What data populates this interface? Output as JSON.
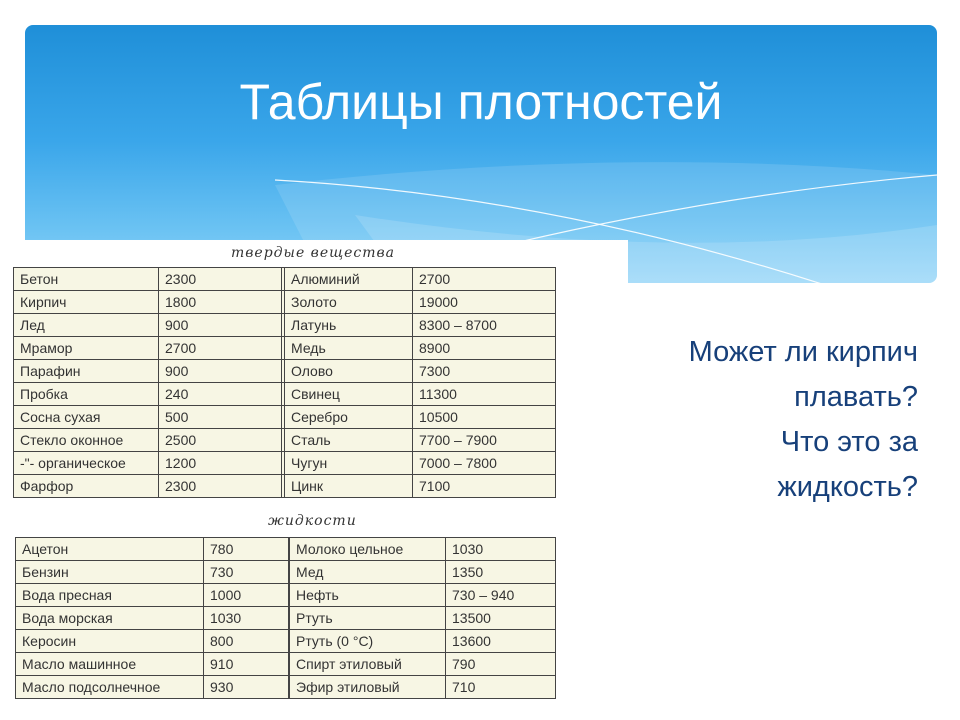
{
  "slide": {
    "title": "Таблицы плотностей",
    "question_lines": [
      "Может ли кирпич",
      "плавать?",
      "Что это за",
      "жидкость?"
    ],
    "colors": {
      "banner": "#3aa6ea",
      "question_text": "#17407a",
      "table_bg": "#f7f6e4"
    }
  },
  "solids": {
    "caption": "твердые вещества",
    "rows": [
      [
        "Бетон",
        "2300",
        "Алюминий",
        "2700"
      ],
      [
        "Кирпич",
        "1800",
        "Золото",
        "19000"
      ],
      [
        "Лед",
        "900",
        "Латунь",
        "8300 – 8700"
      ],
      [
        "Мрамор",
        "2700",
        "Медь",
        "8900"
      ],
      [
        "Парафин",
        "900",
        "Олово",
        "7300"
      ],
      [
        "Пробка",
        "240",
        "Свинец",
        "11300"
      ],
      [
        "Сосна сухая",
        "500",
        "Серебро",
        "10500"
      ],
      [
        "Стекло оконное",
        "2500",
        "Сталь",
        "7700 – 7900"
      ],
      [
        "-\"- органическое",
        "1200",
        "Чугун",
        "7000 – 7800"
      ],
      [
        "Фарфор",
        "2300",
        "Цинк",
        "7100"
      ]
    ]
  },
  "liquids": {
    "caption": "жидкости",
    "rows": [
      [
        "Ацетон",
        "780",
        "Молоко цельное",
        "1030"
      ],
      [
        "Бензин",
        "730",
        "Мед",
        "1350"
      ],
      [
        "Вода пресная",
        "1000",
        "Нефть",
        "730 – 940"
      ],
      [
        "Вода морская",
        "1030",
        "Ртуть",
        "13500"
      ],
      [
        "Керосин",
        "800",
        "Ртуть (0 °C)",
        "13600"
      ],
      [
        "Масло машинное",
        "910",
        "Спирт этиловый",
        "790"
      ],
      [
        "Масло подсолнечное",
        "930",
        "Эфир этиловый",
        "710"
      ]
    ]
  }
}
